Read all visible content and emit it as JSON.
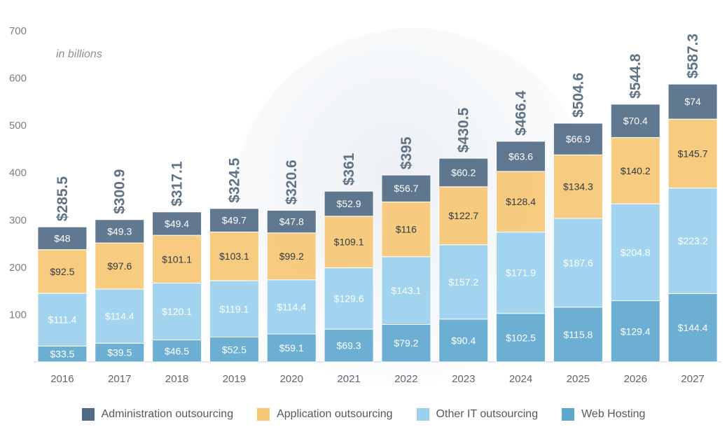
{
  "chart_data": {
    "type": "bar",
    "stacked": true,
    "unit_note": "in billions",
    "categories": [
      "2016",
      "2017",
      "2018",
      "2019",
      "2020",
      "2021",
      "2022",
      "2023",
      "2024",
      "2025",
      "2026",
      "2027"
    ],
    "totals": [
      "$285.5",
      "$300.9",
      "$317.1",
      "$324.5",
      "$320.6",
      "$361",
      "$395",
      "$430.5",
      "$466.4",
      "$504.6",
      "$544.8",
      "$587.3"
    ],
    "ylim": [
      0,
      700
    ],
    "yticks": [
      100,
      200,
      300,
      400,
      500,
      600,
      700
    ],
    "grid": false,
    "legend_position": "bottom",
    "series": [
      {
        "name": "Web Hosting",
        "color": "#5ea7cf",
        "values": [
          33.5,
          39.5,
          46.5,
          52.5,
          59.1,
          69.3,
          79.2,
          90.4,
          102.5,
          115.8,
          129.4,
          144.4
        ]
      },
      {
        "name": "Other IT outsourcing",
        "color": "#99d0ee",
        "values": [
          111.4,
          114.4,
          120.1,
          119.1,
          114.4,
          129.6,
          143.1,
          157.2,
          171.9,
          187.6,
          204.8,
          223.2
        ]
      },
      {
        "name": "Application outsourcing",
        "color": "#f7c773",
        "values": [
          92.5,
          97.6,
          101.1,
          103.1,
          99.2,
          109.1,
          116,
          122.7,
          128.4,
          134.3,
          140.2,
          145.7
        ]
      },
      {
        "name": "Administration outsourcing",
        "color": "#4f6a84",
        "values": [
          48,
          49.3,
          49.4,
          49.7,
          47.8,
          52.9,
          56.7,
          60.2,
          63.6,
          66.9,
          70.4,
          74
        ]
      }
    ]
  },
  "legend": [
    {
      "label": "Administration outsourcing",
      "color": "#4f6a84"
    },
    {
      "label": "Application outsourcing",
      "color": "#f7c773"
    },
    {
      "label": "Other IT outsourcing",
      "color": "#99d0ee"
    },
    {
      "label": "Web Hosting",
      "color": "#5ea7cf"
    }
  ]
}
